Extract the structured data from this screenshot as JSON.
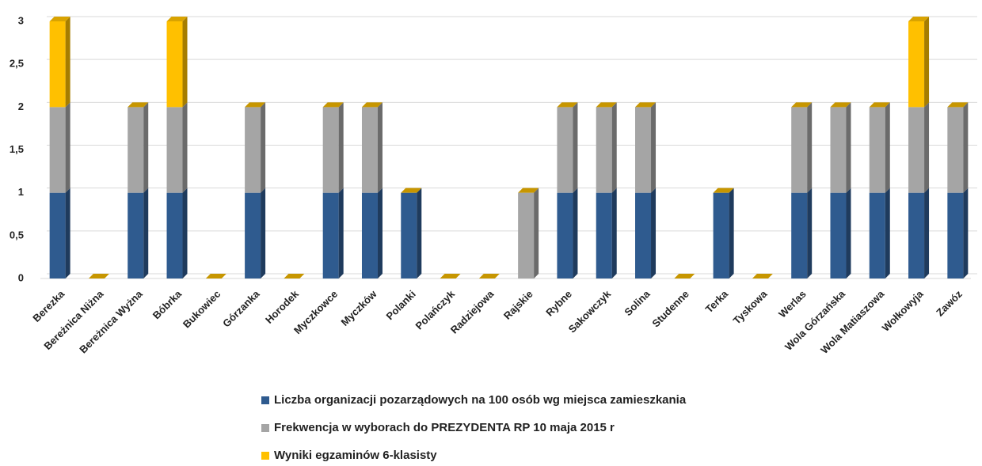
{
  "chart_data": {
    "type": "bar",
    "stacked": true,
    "categories": [
      "Berezka",
      "Bereżnica Niżna",
      "Bereżnica Wyżna",
      "Bóbrka",
      "Bukowiec",
      "Górzanka",
      "Horodek",
      "Myczkowce",
      "Myczków",
      "Polanki",
      "Polańczyk",
      "Radziejowa",
      "Rajskie",
      "Rybne",
      "Sakowczyk",
      "Solina",
      "Studenne",
      "Terka",
      "Tyskowa",
      "Werlas",
      "Wola Górzańska",
      "Wola Matiaszowa",
      "Wołkowyja",
      "Zawóz"
    ],
    "series": [
      {
        "name": "Liczba organizacji pozarządowych na 100 osób wg miejsca zamieszkania",
        "color": "#2f5b8f",
        "values": [
          1,
          0,
          1,
          1,
          0,
          1,
          0,
          1,
          1,
          1,
          0,
          0,
          0,
          1,
          1,
          1,
          0,
          1,
          0,
          1,
          1,
          1,
          1,
          1
        ]
      },
      {
        "name": "Frekwencja w wyborach do PREZYDENTA RP 10 maja 2015 r",
        "color": "#a5a5a5",
        "values": [
          1,
          0,
          1,
          1,
          0,
          1,
          0,
          1,
          1,
          0,
          0,
          0,
          1,
          1,
          1,
          1,
          0,
          0,
          0,
          1,
          1,
          1,
          1,
          1
        ]
      },
      {
        "name": "Wyniki egzaminów 6-klasisty",
        "color": "#ffc000",
        "values": [
          1,
          0,
          0,
          1,
          0,
          0,
          0,
          0,
          0,
          0,
          0,
          0,
          0,
          0,
          0,
          0,
          0,
          0,
          0,
          0,
          0,
          0,
          1,
          0
        ]
      }
    ],
    "ylim": [
      0,
      3
    ],
    "yticks": [
      0,
      {
        "value": 0.5,
        "label": "0,5"
      },
      1,
      {
        "value": 1.5,
        "label": "1,5"
      },
      2,
      {
        "value": 2.5,
        "label": "2,5"
      },
      3
    ],
    "grid": true,
    "legend": "bottom"
  }
}
